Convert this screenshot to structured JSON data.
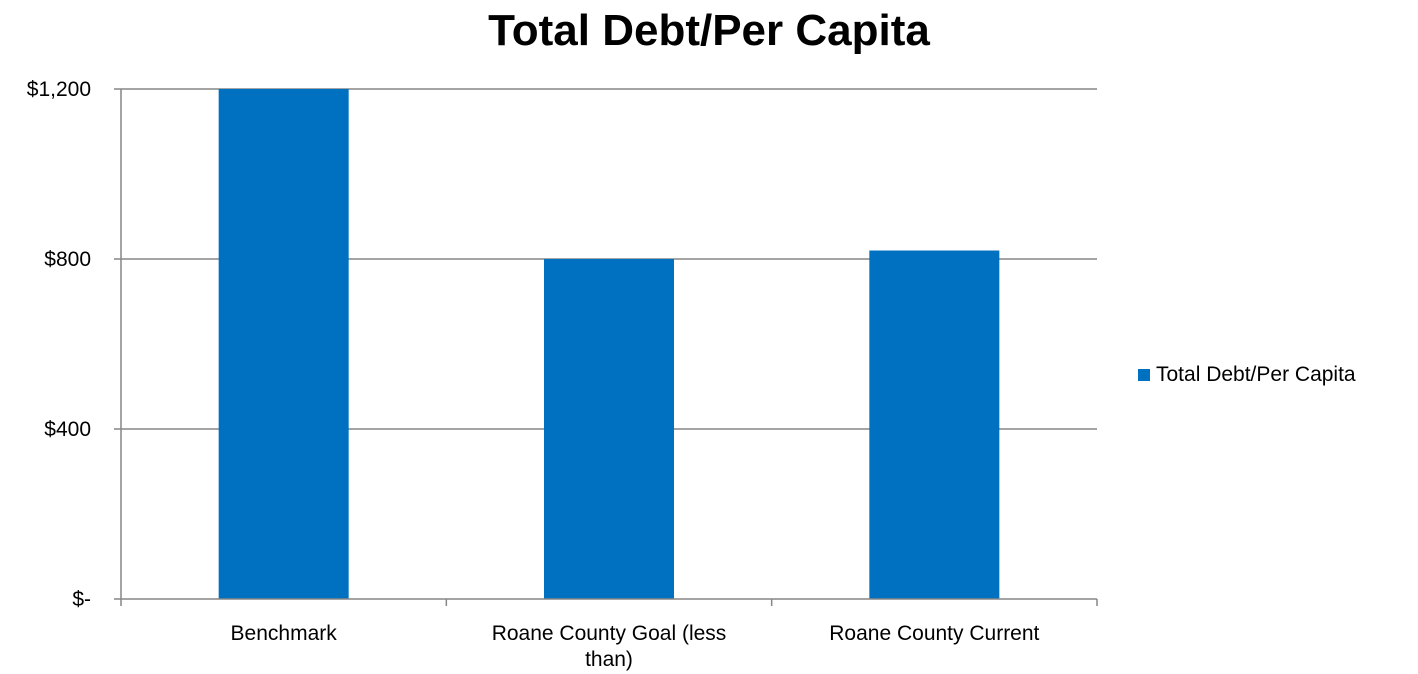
{
  "chart_data": {
    "type": "bar",
    "title": "Total Debt/Per Capita",
    "categories": [
      "Benchmark",
      "Roane County Goal (less than)",
      "Roane County Current"
    ],
    "category_lines": [
      [
        "Benchmark"
      ],
      [
        "Roane County Goal (less",
        "than)"
      ],
      [
        "Roane County Current"
      ]
    ],
    "series": [
      {
        "name": "Total Debt/Per Capita",
        "values": [
          1200,
          800,
          820
        ],
        "color": "#0070C0"
      }
    ],
    "y_ticks": [
      0,
      400,
      800,
      1200
    ],
    "y_tick_labels": [
      "$-",
      "$400",
      "$800",
      "$1,200"
    ],
    "ylim": [
      0,
      1200
    ],
    "grid": true,
    "legend_position": "right",
    "xlabel": "",
    "ylabel": ""
  }
}
